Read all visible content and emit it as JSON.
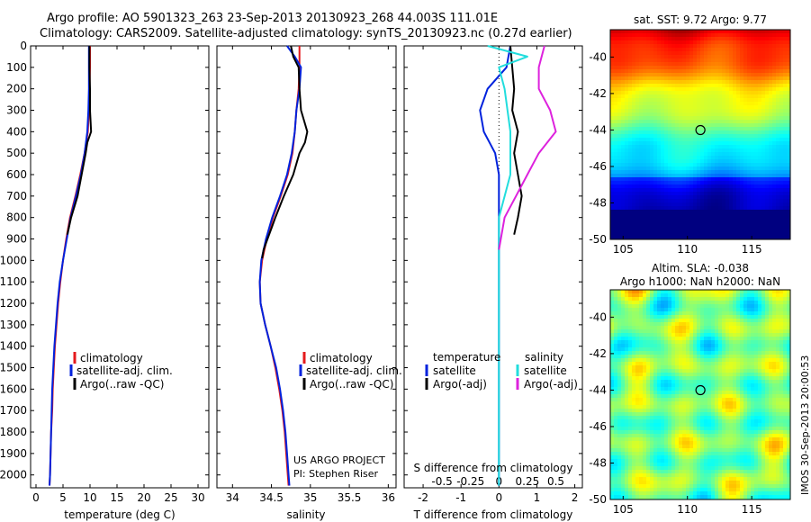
{
  "header": {
    "line1": "Argo profile: AO 5901323_263 23-Sep-2013 20130923_268 44.003S 111.01E",
    "line2": "Climatology: CARS2009. Satellite-adjusted climatology: synTS_20130923.nc (0.27d earlier)"
  },
  "map_sst": {
    "title": "sat. SST: 9.72 Argo: 9.77"
  },
  "map_sla": {
    "title1": "Altim. SLA: -0.038",
    "title2": "Argo h1000: NaN h2000: NaN"
  },
  "credits": {
    "project": "US ARGO PROJECT",
    "pi": "PI: Stephen Riser",
    "imos": "IMOS 30-Sep-2013 20:00:53"
  },
  "colors": {
    "climatology": "#e41a1c",
    "satellite": "#0022dd",
    "argo": "#000000",
    "satellite_salinity": "#22dddd",
    "argo_salinity": "#dd22dd"
  },
  "chart_data": [
    {
      "type": "line",
      "name": "temperature-profile",
      "xlabel": "temperature (deg C)",
      "ylabel": "",
      "xlim": [
        -1,
        32
      ],
      "ylim": [
        0,
        2060
      ],
      "y_inverted": true,
      "xticks": [
        0,
        5,
        10,
        15,
        20,
        25,
        30
      ],
      "yticks": [
        0,
        100,
        200,
        300,
        400,
        500,
        600,
        700,
        800,
        900,
        1000,
        1100,
        1200,
        1300,
        1400,
        1500,
        1600,
        1700,
        1800,
        1900,
        2000
      ],
      "legend": [
        "climatology",
        "satellite-adj. clim.",
        "Argo(..raw -QC)"
      ],
      "series": [
        {
          "name": "climatology",
          "points": [
            [
              10.0,
              0
            ],
            [
              10.0,
              100
            ],
            [
              9.9,
              200
            ],
            [
              9.8,
              300
            ],
            [
              9.6,
              400
            ],
            [
              9.0,
              500
            ],
            [
              8.2,
              600
            ],
            [
              7.3,
              700
            ],
            [
              6.3,
              800
            ],
            [
              5.6,
              900
            ],
            [
              5.0,
              1000
            ],
            [
              4.5,
              1100
            ],
            [
              4.1,
              1200
            ],
            [
              3.8,
              1300
            ],
            [
              3.5,
              1400
            ],
            [
              3.3,
              1500
            ],
            [
              3.1,
              1600
            ],
            [
              3.0,
              1700
            ],
            [
              2.8,
              1800
            ],
            [
              2.7,
              1900
            ],
            [
              2.6,
              2000
            ],
            [
              2.5,
              2050
            ]
          ]
        },
        {
          "name": "satellite-adj. clim.",
          "points": [
            [
              9.8,
              0
            ],
            [
              9.8,
              100
            ],
            [
              9.8,
              200
            ],
            [
              9.7,
              300
            ],
            [
              9.5,
              400
            ],
            [
              9.0,
              500
            ],
            [
              8.3,
              600
            ],
            [
              7.4,
              700
            ],
            [
              6.4,
              800
            ],
            [
              5.7,
              900
            ],
            [
              5.0,
              1000
            ],
            [
              4.4,
              1100
            ],
            [
              4.0,
              1200
            ],
            [
              3.7,
              1300
            ],
            [
              3.4,
              1400
            ],
            [
              3.2,
              1500
            ],
            [
              3.0,
              1600
            ],
            [
              2.9,
              1700
            ],
            [
              2.8,
              1800
            ],
            [
              2.7,
              1900
            ],
            [
              2.6,
              2000
            ],
            [
              2.5,
              2050
            ]
          ]
        },
        {
          "name": "Argo(..raw -QC)",
          "points": [
            [
              9.9,
              0
            ],
            [
              9.9,
              100
            ],
            [
              10.0,
              200
            ],
            [
              10.0,
              300
            ],
            [
              10.2,
              400
            ],
            [
              9.5,
              450
            ],
            [
              9.2,
              500
            ],
            [
              8.6,
              580
            ],
            [
              7.7,
              700
            ],
            [
              6.5,
              800
            ],
            [
              5.8,
              880
            ]
          ]
        }
      ]
    },
    {
      "type": "line",
      "name": "salinity-profile",
      "xlabel": "salinity",
      "ylabel": "",
      "xlim": [
        33.8,
        36.1
      ],
      "ylim": [
        0,
        2060
      ],
      "y_inverted": true,
      "xticks": [
        34,
        34.5,
        35,
        35.5,
        36
      ],
      "legend": [
        "climatology",
        "satellite-adj. clim.",
        "Argo(..raw -QC)"
      ],
      "series": [
        {
          "name": "climatology",
          "points": [
            [
              34.86,
              0
            ],
            [
              34.86,
              100
            ],
            [
              34.85,
              200
            ],
            [
              34.82,
              300
            ],
            [
              34.8,
              400
            ],
            [
              34.77,
              500
            ],
            [
              34.71,
              600
            ],
            [
              34.62,
              700
            ],
            [
              34.52,
              800
            ],
            [
              34.44,
              900
            ],
            [
              34.38,
              1000
            ],
            [
              34.35,
              1100
            ],
            [
              34.36,
              1200
            ],
            [
              34.42,
              1300
            ],
            [
              34.49,
              1400
            ],
            [
              34.55,
              1500
            ],
            [
              34.6,
              1600
            ],
            [
              34.64,
              1700
            ],
            [
              34.67,
              1800
            ],
            [
              34.69,
              1900
            ],
            [
              34.71,
              2000
            ],
            [
              34.72,
              2050
            ]
          ]
        },
        {
          "name": "satellite-adj. clim.",
          "points": [
            [
              34.7,
              0
            ],
            [
              34.8,
              50
            ],
            [
              34.88,
              100
            ],
            [
              34.86,
              200
            ],
            [
              34.82,
              300
            ],
            [
              34.8,
              400
            ],
            [
              34.76,
              500
            ],
            [
              34.7,
              600
            ],
            [
              34.61,
              700
            ],
            [
              34.51,
              800
            ],
            [
              34.43,
              900
            ],
            [
              34.37,
              1000
            ],
            [
              34.35,
              1100
            ],
            [
              34.36,
              1200
            ],
            [
              34.42,
              1300
            ],
            [
              34.49,
              1400
            ],
            [
              34.56,
              1500
            ],
            [
              34.61,
              1600
            ],
            [
              34.65,
              1700
            ],
            [
              34.68,
              1800
            ],
            [
              34.7,
              1900
            ],
            [
              34.72,
              2000
            ],
            [
              34.73,
              2050
            ]
          ]
        },
        {
          "name": "Argo(..raw -QC)",
          "points": [
            [
              34.75,
              0
            ],
            [
              34.78,
              50
            ],
            [
              34.85,
              100
            ],
            [
              34.86,
              200
            ],
            [
              34.88,
              300
            ],
            [
              34.92,
              350
            ],
            [
              34.96,
              400
            ],
            [
              34.93,
              450
            ],
            [
              34.86,
              500
            ],
            [
              34.78,
              600
            ],
            [
              34.66,
              700
            ],
            [
              34.55,
              800
            ],
            [
              34.5,
              850
            ],
            [
              34.45,
              900
            ],
            [
              34.4,
              950
            ],
            [
              34.38,
              990
            ]
          ]
        }
      ]
    },
    {
      "type": "line",
      "name": "difference-profile",
      "xlabel": "T difference from climatology",
      "ylabel": "",
      "xlim": [
        -2.5,
        2.2
      ],
      "ylim": [
        0,
        2060
      ],
      "y_inverted": true,
      "xticks": [
        -2,
        -1,
        0,
        1,
        2
      ],
      "secondary_xlabel": "S difference from climatology",
      "secondary_xticks": [
        -0.5,
        -0.25,
        0,
        0.25,
        0.5
      ],
      "legend_titles": [
        "temperature",
        "salinity"
      ],
      "legend": [
        "satellite",
        "Argo(-adj)",
        "satellite",
        "Argo(-adj)"
      ],
      "series": [
        {
          "name": "temperature satellite",
          "points": [
            [
              0.3,
              0
            ],
            [
              0.2,
              100
            ],
            [
              -0.3,
              200
            ],
            [
              -0.5,
              300
            ],
            [
              -0.4,
              400
            ],
            [
              -0.1,
              500
            ],
            [
              0.0,
              600
            ],
            [
              0.0,
              800
            ],
            [
              0.0,
              1000
            ],
            [
              0.0,
              2050
            ]
          ]
        },
        {
          "name": "temperature Argo(-adj)",
          "points": [
            [
              0.3,
              0
            ],
            [
              0.35,
              100
            ],
            [
              0.4,
              200
            ],
            [
              0.35,
              300
            ],
            [
              0.5,
              400
            ],
            [
              0.4,
              500
            ],
            [
              0.5,
              600
            ],
            [
              0.6,
              700
            ],
            [
              0.5,
              800
            ],
            [
              0.4,
              880
            ]
          ]
        },
        {
          "name": "salinity satellite",
          "points": [
            [
              -0.1,
              0
            ],
            [
              0.25,
              50
            ],
            [
              0.0,
              100
            ],
            [
              0.05,
              200
            ],
            [
              0.1,
              400
            ],
            [
              0.1,
              600
            ],
            [
              0.0,
              800
            ],
            [
              0.0,
              1000
            ],
            [
              0.0,
              1500
            ],
            [
              0.0,
              2050
            ]
          ]
        },
        {
          "name": "salinity Argo(-adj)",
          "points": [
            [
              0.4,
              0
            ],
            [
              0.35,
              100
            ],
            [
              0.35,
              200
            ],
            [
              0.45,
              300
            ],
            [
              0.5,
              400
            ],
            [
              0.35,
              500
            ],
            [
              0.25,
              600
            ],
            [
              0.15,
              700
            ],
            [
              0.05,
              800
            ],
            [
              0.0,
              950
            ]
          ]
        }
      ]
    }
  ],
  "map_data": {
    "xticks": [
      105,
      110,
      115
    ],
    "yticks": [
      -40,
      -42,
      -44,
      -46,
      -48,
      -50
    ],
    "xlim": [
      104,
      118
    ],
    "ylim": [
      -50,
      -38.5
    ],
    "float_position": [
      111.01,
      -44.003
    ]
  }
}
